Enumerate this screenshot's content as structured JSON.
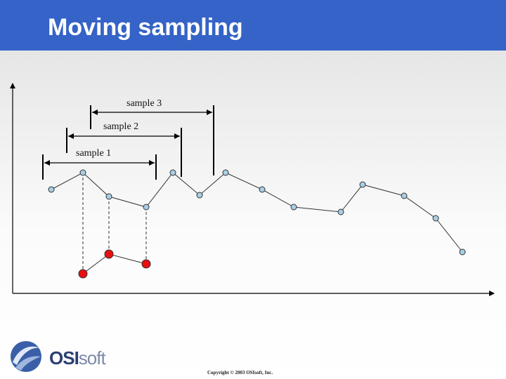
{
  "header": {
    "title": "Moving sampling"
  },
  "diagram": {
    "samples": [
      {
        "label": "sample 1"
      },
      {
        "label": "sample 2"
      },
      {
        "label": "sample 3"
      }
    ],
    "colors": {
      "point_fill": "#a9cde6",
      "average_fill": "#e81010",
      "line": "#333333",
      "bracket": "#000000"
    }
  },
  "footer": {
    "logo_bold": "OSI",
    "logo_light": "soft",
    "copyright": "Copyright © 2003 OSIsoft, Inc."
  }
}
